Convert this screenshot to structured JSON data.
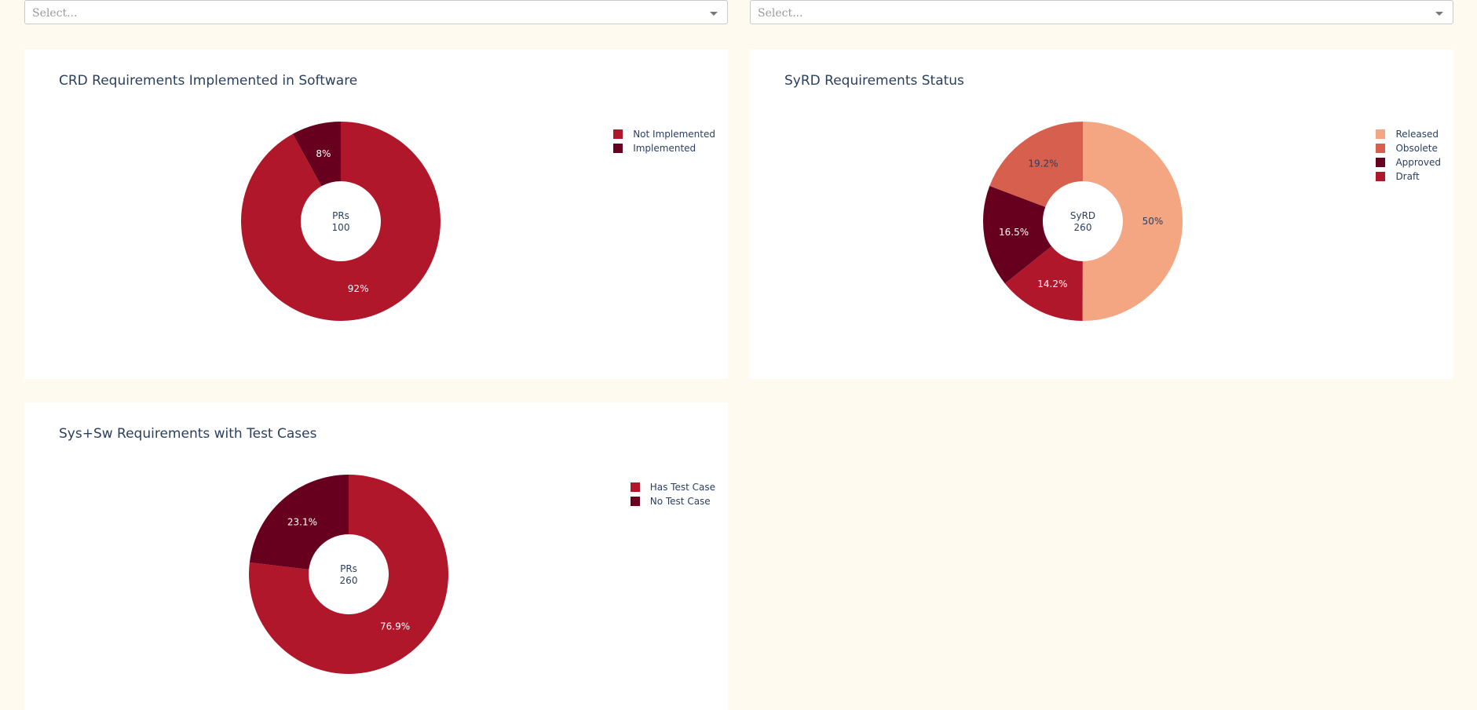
{
  "filters": [
    {
      "placeholder": "Select..."
    },
    {
      "placeholder": "Select..."
    }
  ],
  "chart_data": [
    {
      "type": "pie",
      "title": "CRD Requirements Implemented in Software",
      "center_label": "PRs",
      "center_value": "100",
      "slices": [
        {
          "label": "Not Implemented",
          "value": 92,
          "text": "92%",
          "color": "#b0172b"
        },
        {
          "label": "Implemented",
          "value": 8,
          "text": "8%",
          "color": "#67001f"
        }
      ],
      "legend_placement": "top-right"
    },
    {
      "type": "pie",
      "title": "SyRD Requirements Status",
      "center_label": "SyRD",
      "center_value": "260",
      "slices": [
        {
          "label": "Released",
          "value": 50,
          "text": "50%",
          "color": "#f4a582"
        },
        {
          "label": "Draft",
          "value": 14.2,
          "text": "14.2%",
          "color": "#b0172b"
        },
        {
          "label": "Approved",
          "value": 16.5,
          "text": "16.5%",
          "color": "#67001f"
        },
        {
          "label": "Obsolete",
          "value": 19.2,
          "text": "19.2%",
          "color": "#d6604d"
        }
      ],
      "legend_order": [
        "Released",
        "Obsolete",
        "Approved",
        "Draft"
      ],
      "legend_placement": "top-right"
    },
    {
      "type": "pie",
      "title": "Sys+Sw Requirements with Test Cases",
      "center_label": "PRs",
      "center_value": "260",
      "slices": [
        {
          "label": "Has Test Case",
          "value": 76.9,
          "text": "76.9%",
          "color": "#b0172b"
        },
        {
          "label": "No Test Case",
          "value": 23.1,
          "text": "23.1%",
          "color": "#67001f"
        }
      ],
      "legend_placement": "top-right"
    }
  ]
}
